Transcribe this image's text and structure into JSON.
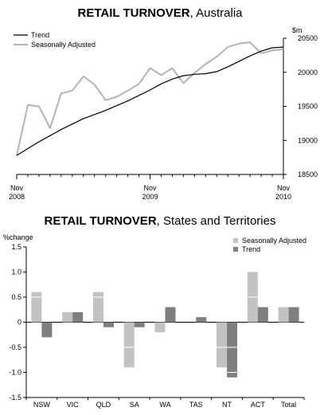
{
  "colors": {
    "trend_line": "#000000",
    "seasonally_adjusted_line": "#b3b3b3",
    "bar_seasonally_adjusted": "#c2c2c2",
    "bar_trend": "#7f7f7f"
  },
  "chart_data": [
    {
      "type": "line",
      "title_bold": "RETAIL TURNOVER",
      "title_rest": ", Australia",
      "ylabel": "$m",
      "ylim": [
        18500,
        20500
      ],
      "yticks": [
        "20500",
        "20000",
        "19500",
        "19000",
        "18500"
      ],
      "ytick_values": [
        20500,
        20000,
        19500,
        19000,
        18500
      ],
      "xtick_labels": [
        {
          "month": "Nov",
          "year": "2008"
        },
        {
          "month": "Nov",
          "year": "2009"
        },
        {
          "month": "Nov",
          "year": "2010"
        }
      ],
      "x": [
        "Nov 2008",
        "Dec 2008",
        "Jan 2009",
        "Feb 2009",
        "Mar 2009",
        "Apr 2009",
        "May 2009",
        "Jun 2009",
        "Jul 2009",
        "Aug 2009",
        "Sep 2009",
        "Oct 2009",
        "Nov 2009",
        "Dec 2009",
        "Jan 2010",
        "Feb 2010",
        "Mar 2010",
        "Apr 2010",
        "May 2010",
        "Jun 2010",
        "Jul 2010",
        "Aug 2010",
        "Sep 2010",
        "Oct 2010",
        "Nov 2010"
      ],
      "legend": {
        "placement": "top-left",
        "entries": [
          "Trend",
          "Seasonally Adjusted"
        ]
      },
      "series": [
        {
          "name": "Trend",
          "color": "#000000",
          "values": [
            18780,
            18880,
            18980,
            19070,
            19160,
            19240,
            19320,
            19380,
            19440,
            19510,
            19580,
            19660,
            19740,
            19830,
            19900,
            19950,
            19970,
            19980,
            20010,
            20080,
            20160,
            20240,
            20310,
            20360,
            20370
          ]
        },
        {
          "name": "Seasonally Adjusted",
          "color": "#b3b3b3",
          "values": [
            18780,
            19520,
            19500,
            19180,
            19690,
            19730,
            19940,
            19820,
            19590,
            19640,
            19730,
            19830,
            20060,
            19960,
            20060,
            19840,
            19990,
            20120,
            20230,
            20370,
            20420,
            20440,
            20280,
            20320,
            20340
          ]
        }
      ]
    },
    {
      "type": "bar",
      "title_bold": "RETAIL TURNOVER",
      "title_rest": ", States and Territories",
      "ylabel": "%change",
      "ylim": [
        -1.5,
        1.5
      ],
      "yticks": [
        "1.5",
        "1.0",
        "0.5",
        "0",
        "-0.5",
        "-1.0",
        "-1.5"
      ],
      "ytick_values": [
        1.5,
        1.0,
        0.5,
        0,
        -0.5,
        -1.0,
        -1.5
      ],
      "categories": [
        "NSW",
        "VIC",
        "QLD",
        "SA",
        "WA",
        "TAS",
        "NT",
        "ACT",
        "Total"
      ],
      "legend": {
        "placement": "top-right",
        "entries": [
          "Seasonally Adjusted",
          "Trend"
        ]
      },
      "series": [
        {
          "name": "Seasonally Adjusted",
          "color": "#c2c2c2",
          "values": [
            0.6,
            0.2,
            0.6,
            -0.9,
            -0.2,
            0.0,
            -0.9,
            1.0,
            0.3
          ]
        },
        {
          "name": "Trend",
          "color": "#7f7f7f",
          "values": [
            -0.3,
            0.2,
            -0.1,
            -0.1,
            0.3,
            0.1,
            -1.1,
            0.3,
            0.3
          ]
        }
      ]
    }
  ]
}
